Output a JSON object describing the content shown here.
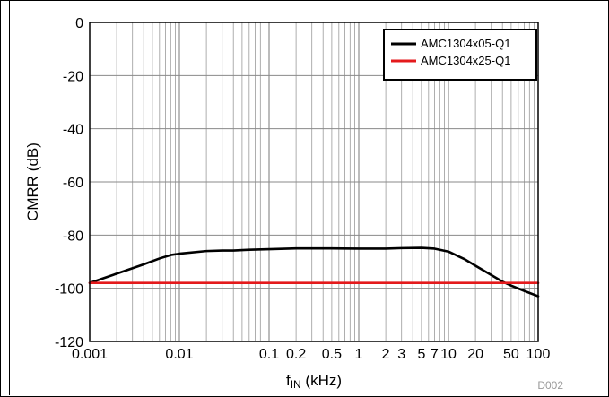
{
  "chart_data": {
    "type": "line",
    "xlabel_main": "f",
    "xlabel_sub": "IN",
    "xlabel_unit": " (kHz)",
    "ylabel": "CMRR (dB)",
    "x_scale": "log",
    "xlim": [
      0.001,
      100
    ],
    "ylim": [
      -120,
      0
    ],
    "grid": true,
    "x_ticks": [
      {
        "value": 0.001,
        "label": "0.001"
      },
      {
        "value": 0.01,
        "label": "0.01"
      },
      {
        "value": 0.1,
        "label": "0.1"
      },
      {
        "value": 0.2,
        "label": "0.2"
      },
      {
        "value": 0.5,
        "label": "0.5"
      },
      {
        "value": 1,
        "label": "1"
      },
      {
        "value": 2,
        "label": "2"
      },
      {
        "value": 3,
        "label": "3"
      },
      {
        "value": 5,
        "label": "5"
      },
      {
        "value": 7,
        "label": "7"
      },
      {
        "value": 10,
        "label": "10"
      },
      {
        "value": 20,
        "label": "20"
      },
      {
        "value": 50,
        "label": "50"
      },
      {
        "value": 100,
        "label": "100"
      }
    ],
    "y_ticks": [
      {
        "value": 0,
        "label": "0"
      },
      {
        "value": -20,
        "label": "-20"
      },
      {
        "value": -40,
        "label": "-40"
      },
      {
        "value": -60,
        "label": "-60"
      },
      {
        "value": -80,
        "label": "-80"
      },
      {
        "value": -100,
        "label": "-100"
      },
      {
        "value": -120,
        "label": "-120"
      }
    ],
    "legend_position": "top-right",
    "series": [
      {
        "name": "AMC1304x05-Q1",
        "color": "#000000",
        "points": [
          [
            0.001,
            -98
          ],
          [
            0.002,
            -94.5
          ],
          [
            0.004,
            -91
          ],
          [
            0.006,
            -88.8
          ],
          [
            0.008,
            -87.5
          ],
          [
            0.01,
            -87
          ],
          [
            0.02,
            -86
          ],
          [
            0.03,
            -85.8
          ],
          [
            0.04,
            -85.8
          ],
          [
            0.06,
            -85.5
          ],
          [
            0.1,
            -85.3
          ],
          [
            0.2,
            -85
          ],
          [
            0.5,
            -85
          ],
          [
            1,
            -85.1
          ],
          [
            2,
            -85.1
          ],
          [
            3,
            -84.9
          ],
          [
            5,
            -84.8
          ],
          [
            7,
            -85.1
          ],
          [
            10,
            -86.2
          ],
          [
            15,
            -89
          ],
          [
            20,
            -91.5
          ],
          [
            30,
            -95
          ],
          [
            40,
            -97.5
          ],
          [
            50,
            -99
          ],
          [
            70,
            -101
          ],
          [
            100,
            -103
          ]
        ]
      },
      {
        "name": "AMC1304x25-Q1",
        "color": "#e41a1c",
        "points": [
          [
            0.001,
            -98
          ],
          [
            100,
            -98
          ]
        ]
      }
    ],
    "annotations": [
      "D002"
    ]
  }
}
